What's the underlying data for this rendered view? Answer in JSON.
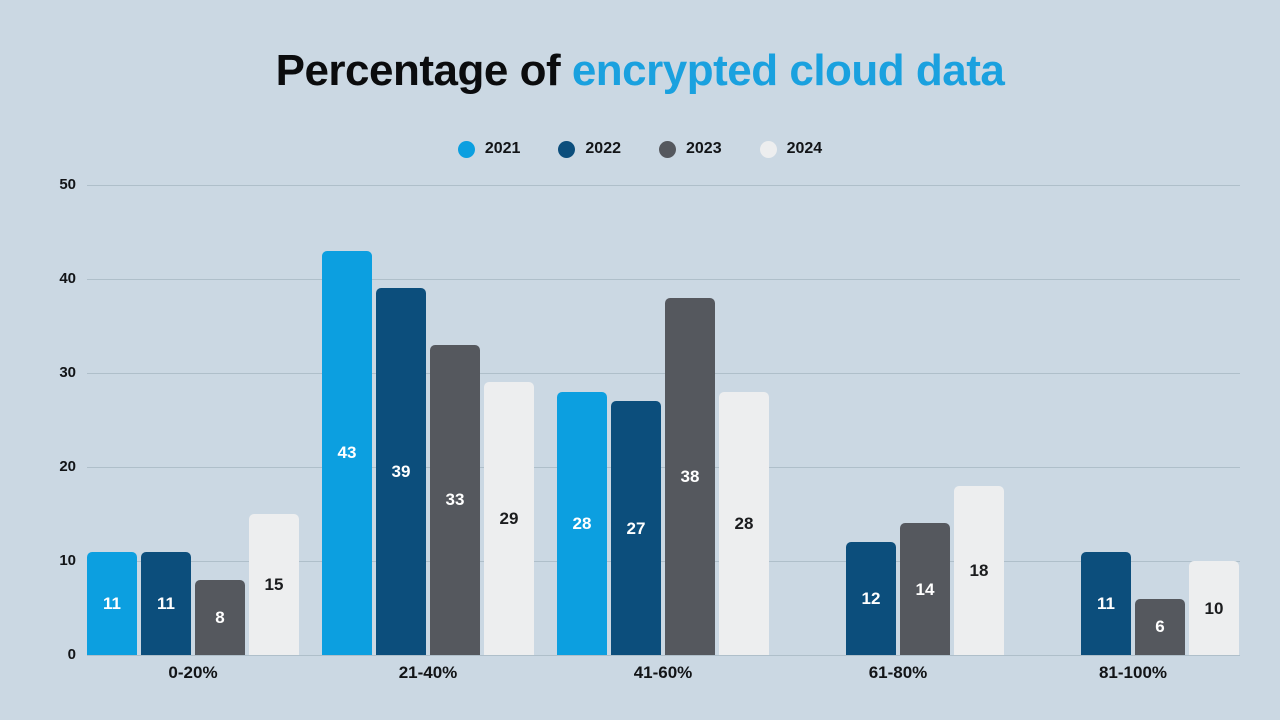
{
  "title": {
    "prefix": "Percentage of ",
    "accent": "encrypted cloud data"
  },
  "colors": {
    "background": "#CBD8E3",
    "title_text": "#0B0C0E",
    "title_accent": "#1AA1DF",
    "gridline": "#AFBFCA",
    "axis_text": "#121417"
  },
  "chart_data": {
    "type": "bar",
    "title": "Percentage of encrypted cloud data",
    "xlabel": "",
    "ylabel": "",
    "ylim": [
      0,
      50
    ],
    "yticks": [
      0,
      10,
      20,
      30,
      40,
      50
    ],
    "grid": true,
    "legend_position": "top-center",
    "categories": [
      "0-20%",
      "21-40%",
      "41-60%",
      "61-80%",
      "81-100%"
    ],
    "series": [
      {
        "name": "2021",
        "color": "#0C9FE0",
        "label_color": "#FFFFFF",
        "values": [
          11,
          43,
          28,
          null,
          null
        ]
      },
      {
        "name": "2022",
        "color": "#0C4E7C",
        "label_color": "#FFFFFF",
        "values": [
          11,
          39,
          27,
          12,
          11
        ]
      },
      {
        "name": "2023",
        "color": "#55585E",
        "label_color": "#FFFFFF",
        "values": [
          8,
          33,
          38,
          14,
          6
        ]
      },
      {
        "name": "2024",
        "color": "#EDEEEF",
        "label_color": "#1B1C1E",
        "values": [
          15,
          29,
          28,
          18,
          10
        ]
      }
    ]
  }
}
